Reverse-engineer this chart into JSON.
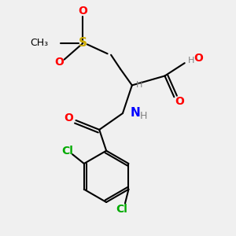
{
  "background_color": "#f0f0f0",
  "atom_colors": {
    "C": "#000000",
    "H": "#808080",
    "O": "#ff0000",
    "N": "#0000ff",
    "S": "#ccaa00",
    "Cl": "#00aa00"
  },
  "figsize": [
    3.0,
    3.0
  ],
  "dpi": 100
}
